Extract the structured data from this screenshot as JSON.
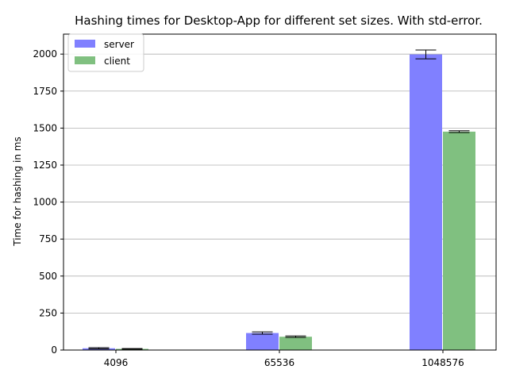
{
  "chart_data": {
    "type": "bar",
    "title": "Hashing times for Desktop-App for different set sizes. With std-error.",
    "xlabel": "",
    "ylabel": "Time for hashing in ms",
    "categories": [
      "4096",
      "65536",
      "1048576"
    ],
    "ylim": [
      0,
      2135
    ],
    "yticks": [
      "0",
      "250",
      "500",
      "750",
      "1000",
      "1250",
      "1500",
      "1750",
      "2000"
    ],
    "grid": "horizontal",
    "legend_position": "upper left",
    "series": [
      {
        "name": "server",
        "color": "#8080ff",
        "values": [
          12,
          115,
          1998
        ],
        "errors": [
          4,
          8,
          30
        ]
      },
      {
        "name": "client",
        "color": "#80c080",
        "values": [
          8,
          90,
          1476
        ],
        "errors": [
          2,
          5,
          6
        ]
      }
    ]
  }
}
